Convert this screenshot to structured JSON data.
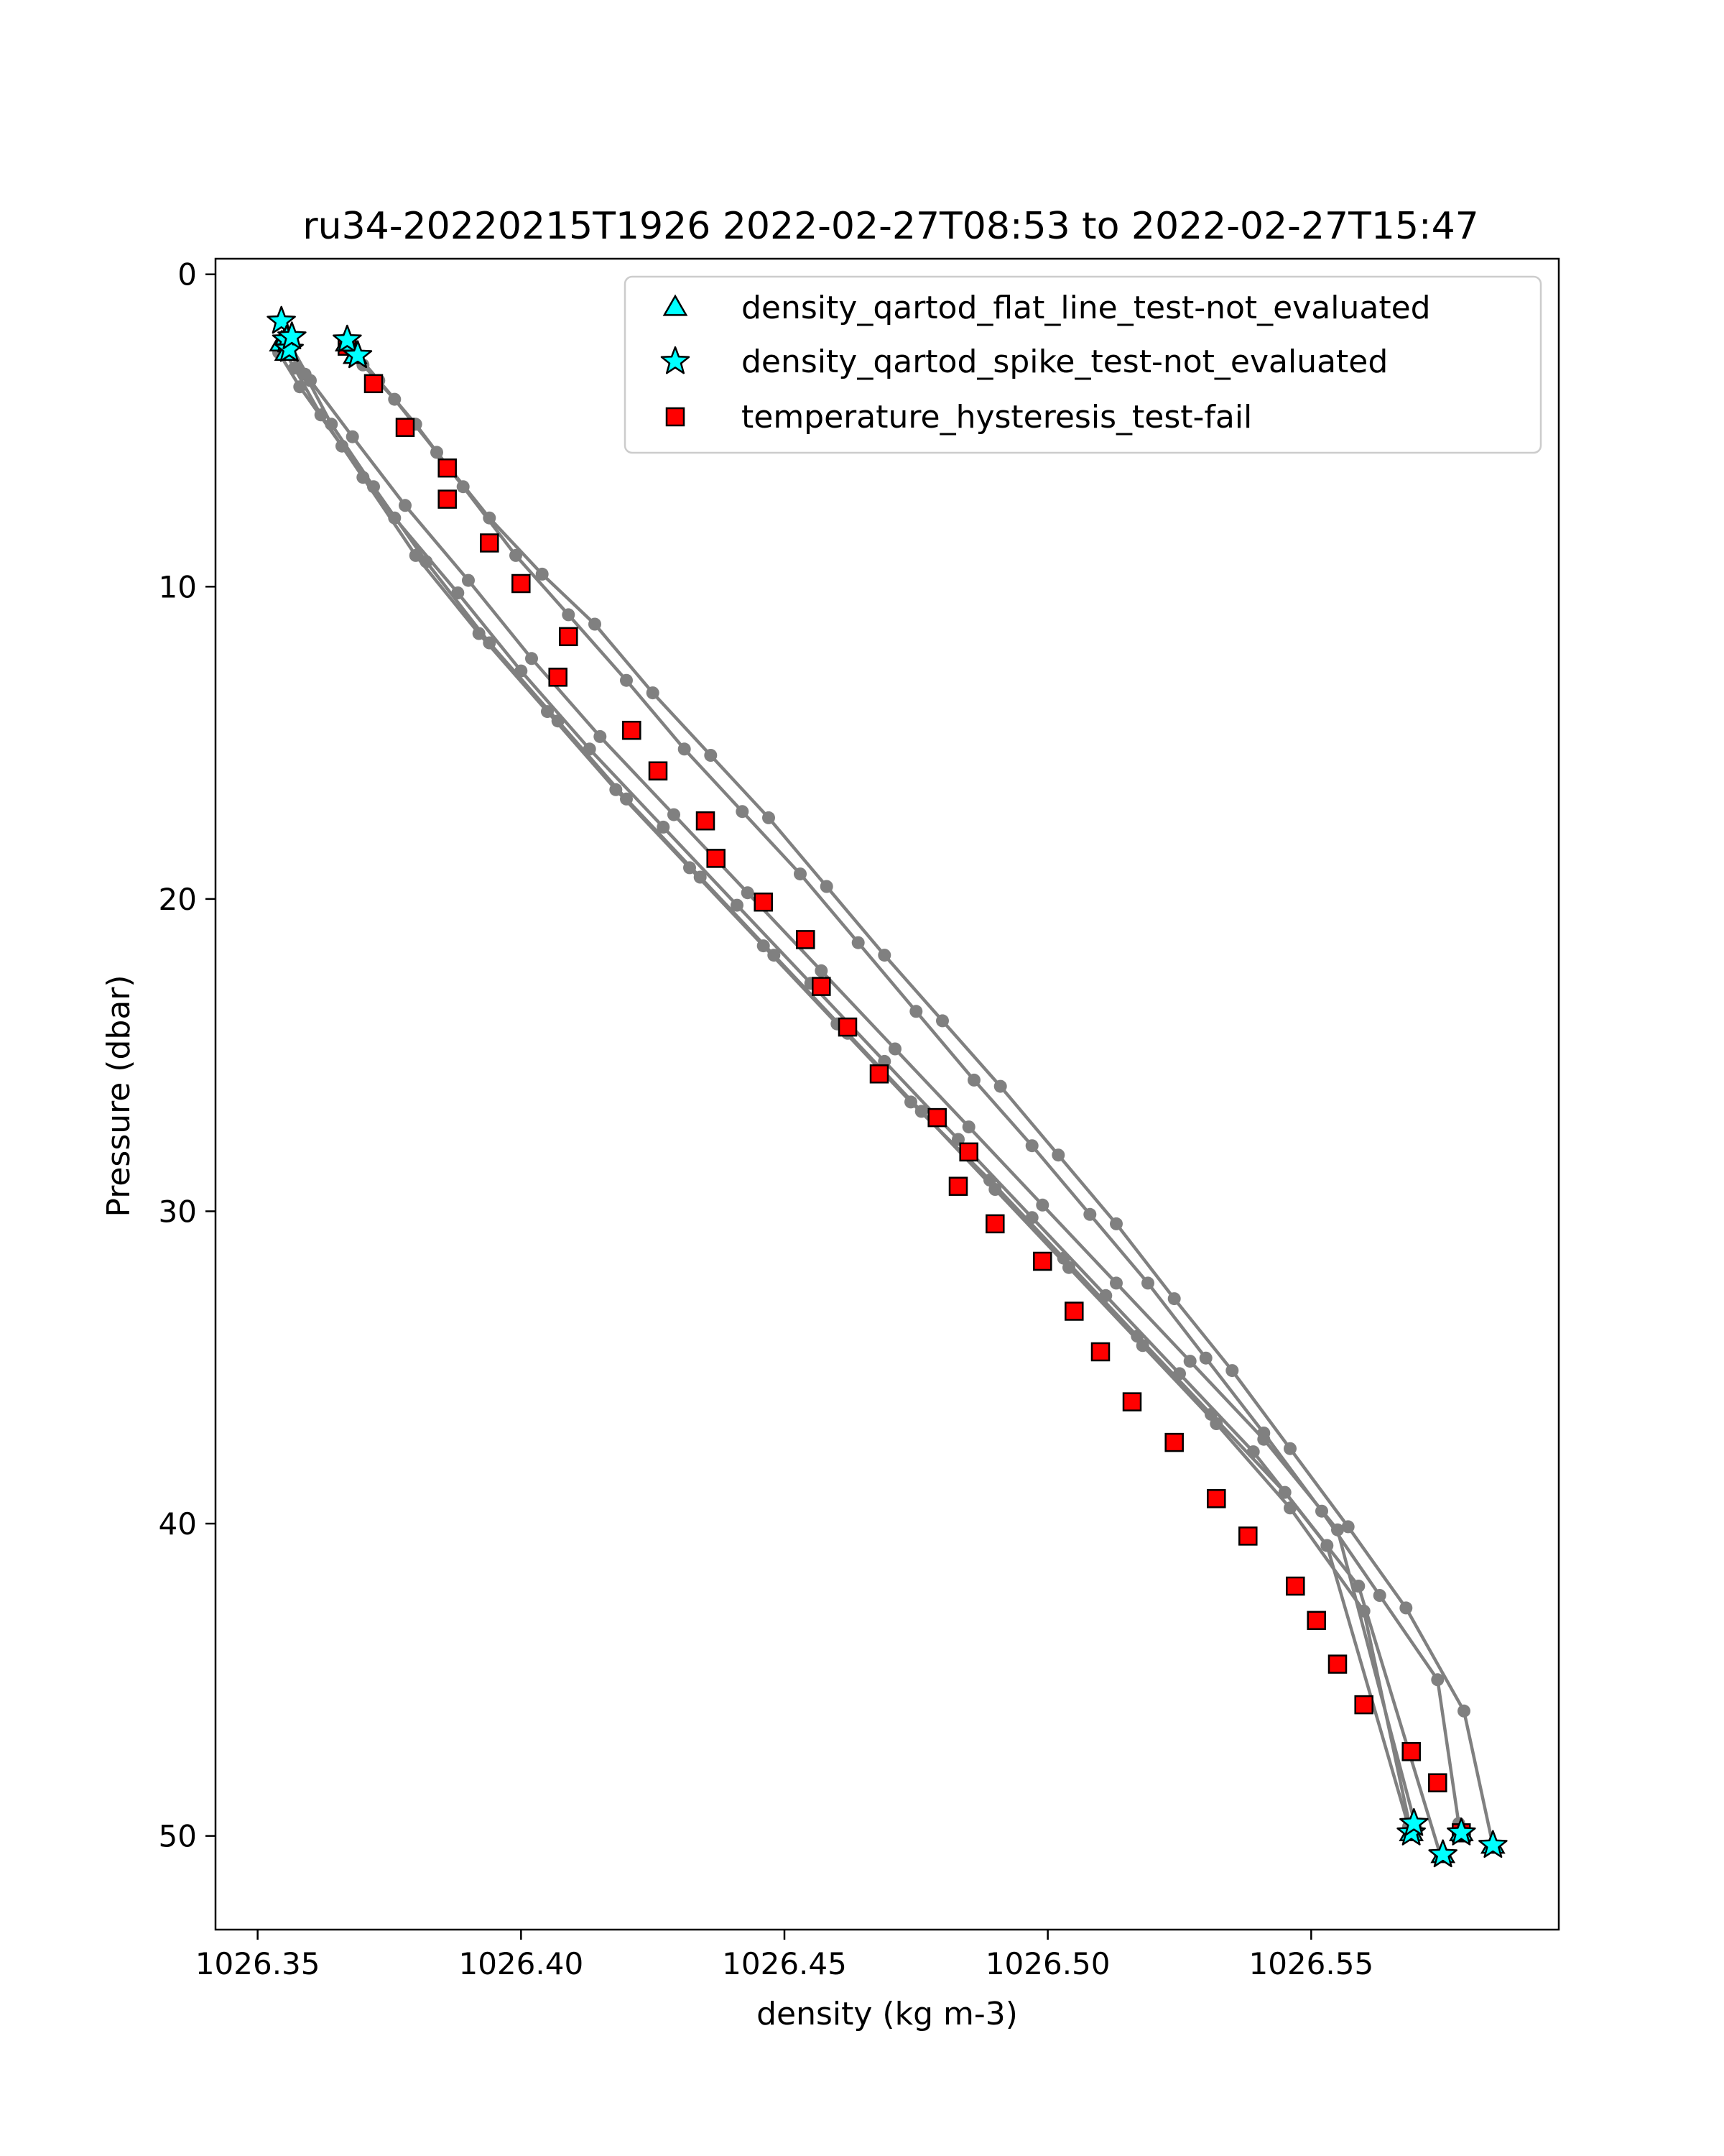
{
  "chart_data": {
    "type": "line",
    "title": "ru34-20220215T1926 2022-02-27T08:53 to 2022-02-27T15:47",
    "xlabel": "density (kg m-3)",
    "ylabel": "Pressure (dbar)",
    "xlim": [
      1026.342,
      1026.597
    ],
    "ylim": [
      53.0,
      -0.5
    ],
    "y_inverted": true,
    "grid": false,
    "legend_position": "top-right",
    "x_ticks": [
      1026.35,
      1026.4,
      1026.45,
      1026.5,
      1026.55
    ],
    "x_tick_labels": [
      "1026.35",
      "1026.40",
      "1026.45",
      "1026.50",
      "1026.55"
    ],
    "y_ticks": [
      0,
      10,
      20,
      30,
      40,
      50
    ],
    "y_tick_labels": [
      "0",
      "10",
      "20",
      "30",
      "40",
      "50"
    ],
    "colors": {
      "profile_line": "#808080",
      "flat_line": "#00ffff",
      "spike": "#00ffff",
      "hysteresis": "#ff0000",
      "edge": "#000000"
    },
    "legend": [
      {
        "key": "flat",
        "label": "density_qartod_flat_line_test-not_evaluated",
        "marker": "triangle"
      },
      {
        "key": "spike",
        "label": "density_qartod_spike_test-not_evaluated",
        "marker": "star"
      },
      {
        "key": "hyst",
        "label": "temperature_hysteresis_test-fail",
        "marker": "square"
      }
    ],
    "profiles": [
      {
        "x": [
          1026.3545,
          1026.357,
          1026.362,
          1026.37,
          1026.38,
          1026.392,
          1026.405,
          1026.418,
          1026.432,
          1026.446,
          1026.46,
          1026.474,
          1026.489,
          1026.503,
          1026.517,
          1026.531,
          1026.545,
          1026.559,
          1026.5745
        ],
        "y": [
          2.3,
          3.0,
          4.5,
          6.5,
          9.0,
          11.5,
          14.0,
          16.5,
          19.0,
          21.5,
          24.0,
          26.5,
          29.0,
          31.5,
          34.0,
          36.5,
          39.0,
          42.0,
          50.6
        ]
      },
      {
        "x": [
          1026.3555,
          1026.359,
          1026.364,
          1026.372,
          1026.382,
          1026.394,
          1026.407,
          1026.42,
          1026.434,
          1026.448,
          1026.462,
          1026.476,
          1026.49,
          1026.504,
          1026.518,
          1026.532,
          1026.546,
          1026.56,
          1026.569
        ],
        "y": [
          2.4,
          3.2,
          4.8,
          6.8,
          9.2,
          11.8,
          14.3,
          16.8,
          19.3,
          21.8,
          24.3,
          26.8,
          29.3,
          31.8,
          34.3,
          36.8,
          39.5,
          42.8,
          49.9
        ]
      },
      {
        "x": [
          1026.354,
          1026.358,
          1026.366,
          1026.376,
          1026.388,
          1026.4,
          1026.413,
          1026.427,
          1026.441,
          1026.455,
          1026.469,
          1026.483,
          1026.497,
          1026.511,
          1026.525,
          1026.539,
          1026.553,
          1026.5685
        ],
        "y": [
          2.5,
          3.6,
          5.5,
          7.8,
          10.2,
          12.7,
          15.2,
          17.7,
          20.2,
          22.7,
          25.2,
          27.7,
          30.2,
          32.7,
          35.2,
          37.7,
          40.7,
          49.7
        ]
      },
      {
        "x": [
          1026.356,
          1026.36,
          1026.368,
          1026.378,
          1026.39,
          1026.402,
          1026.415,
          1026.429,
          1026.443,
          1026.457,
          1026.471,
          1026.485,
          1026.499,
          1026.513,
          1026.527,
          1026.541,
          1026.555,
          1026.57
        ],
        "y": [
          2.2,
          3.4,
          5.2,
          7.4,
          9.8,
          12.3,
          14.8,
          17.3,
          19.8,
          22.3,
          24.8,
          27.3,
          29.8,
          32.3,
          34.8,
          37.3,
          40.2,
          49.8
        ]
      },
      {
        "x": [
          1026.3665,
          1026.37,
          1026.376,
          1026.384,
          1026.394,
          1026.404,
          1026.414,
          1026.425,
          1026.436,
          1026.447,
          1026.458,
          1026.469,
          1026.48,
          1026.491,
          1026.502,
          1026.513,
          1026.524,
          1026.535,
          1026.546,
          1026.557,
          1026.568,
          1026.579,
          1026.5845
        ],
        "y": [
          2.1,
          2.9,
          4.0,
          5.7,
          7.8,
          9.6,
          11.2,
          13.4,
          15.4,
          17.4,
          19.6,
          21.8,
          23.9,
          26.0,
          28.2,
          30.4,
          32.8,
          35.1,
          37.6,
          40.1,
          42.7,
          46.0,
          50.3
        ]
      },
      {
        "x": [
          1026.368,
          1026.373,
          1026.38,
          1026.389,
          1026.399,
          1026.409,
          1026.42,
          1026.431,
          1026.442,
          1026.453,
          1026.464,
          1026.475,
          1026.486,
          1026.497,
          1026.508,
          1026.519,
          1026.53,
          1026.541,
          1026.552,
          1026.563,
          1026.574,
          1026.578
        ],
        "y": [
          2.4,
          3.4,
          4.8,
          6.8,
          9.0,
          10.9,
          13.0,
          15.2,
          17.2,
          19.2,
          21.4,
          23.6,
          25.8,
          27.9,
          30.1,
          32.3,
          34.7,
          37.1,
          39.6,
          42.3,
          45.0,
          49.6
        ]
      }
    ],
    "flat_line_points": {
      "x": [
        1026.3545,
        1026.3555,
        1026.3555,
        1026.367,
        1026.3685,
        1026.575,
        1026.569,
        1026.5785,
        1026.5845
      ],
      "y": [
        2.2,
        2.5,
        2.0,
        2.2,
        2.6,
        50.6,
        49.9,
        49.9,
        50.3
      ]
    },
    "spike_points": {
      "x": [
        1026.3545,
        1026.3555,
        1026.356,
        1026.3565,
        1026.367,
        1026.369,
        1026.575,
        1026.569,
        1026.5695,
        1026.5785,
        1026.5845
      ],
      "y": [
        1.5,
        2.1,
        2.4,
        2.0,
        2.1,
        2.6,
        50.6,
        49.9,
        49.6,
        49.9,
        50.3
      ]
    },
    "hysteresis_points": {
      "x": [
        1026.367,
        1026.372,
        1026.378,
        1026.386,
        1026.386,
        1026.394,
        1026.4,
        1026.409,
        1026.407,
        1026.421,
        1026.426,
        1026.435,
        1026.437,
        1026.446,
        1026.454,
        1026.457,
        1026.462,
        1026.468,
        1026.479,
        1026.485,
        1026.483,
        1026.49,
        1026.499,
        1026.505,
        1026.51,
        1026.516,
        1026.524,
        1026.532,
        1026.538,
        1026.547,
        1026.551,
        1026.555,
        1026.56,
        1026.569,
        1026.574,
        1026.5785
      ],
      "y": [
        2.3,
        3.5,
        4.9,
        6.2,
        7.2,
        8.6,
        9.9,
        11.6,
        12.9,
        14.6,
        15.9,
        17.5,
        18.7,
        20.1,
        21.3,
        22.8,
        24.1,
        25.6,
        27.0,
        28.1,
        29.2,
        30.4,
        31.6,
        33.2,
        34.5,
        36.1,
        37.4,
        39.2,
        40.4,
        42.0,
        43.1,
        44.5,
        45.8,
        47.3,
        48.3,
        49.9
      ]
    }
  }
}
